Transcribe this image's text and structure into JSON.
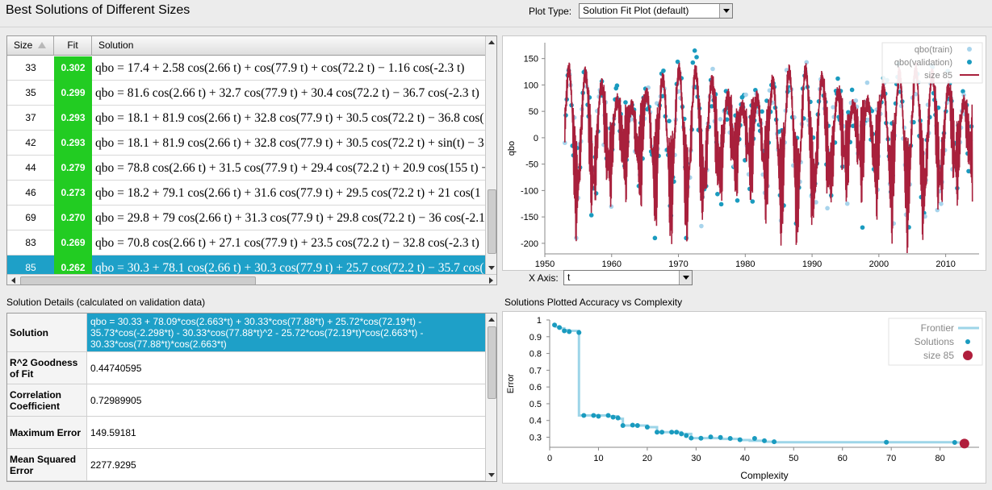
{
  "app": {
    "title": "Best Solutions of Different Sizes",
    "plot_type_label": "Plot Type:",
    "plot_type_value": "Solution Fit Plot (default)"
  },
  "solutions_table": {
    "columns": [
      "Size",
      "Fit",
      "Solution"
    ],
    "rows": [
      {
        "size": "33",
        "fit": "0.302",
        "solution": "qbo = 17.4 + 2.58 cos(2.66 t) + cos(77.9 t) + cos(72.2 t) − 1.16 cos(-2.3 t)"
      },
      {
        "size": "35",
        "fit": "0.299",
        "solution": "qbo = 81.6 cos(2.66 t) + 32.7 cos(77.9 t) + 30.4 cos(72.2 t) − 36.7 cos(-2.3 t)"
      },
      {
        "size": "37",
        "fit": "0.293",
        "solution": "qbo = 18.1 + 81.9 cos(2.66 t) + 32.8 cos(77.9 t) + 30.5 cos(72.2 t) − 36.8 cos("
      },
      {
        "size": "42",
        "fit": "0.293",
        "solution": "qbo = 18.1 + 81.9 cos(2.66 t) + 32.8 cos(77.9 t) + 30.5 cos(72.2 t) + sin(t) − 3"
      },
      {
        "size": "44",
        "fit": "0.279",
        "solution": "qbo = 78.8 cos(2.66 t) + 31.5 cos(77.9 t) + 29.4 cos(72.2 t) + 20.9 cos(155 t) −"
      },
      {
        "size": "46",
        "fit": "0.273",
        "solution": "qbo = 18.2 + 79.1 cos(2.66 t) + 31.6 cos(77.9 t) + 29.5 cos(72.2 t) + 21 cos(1"
      },
      {
        "size": "69",
        "fit": "0.270",
        "solution": "qbo = 29.8 + 79 cos(2.66 t) + 31.3 cos(77.9 t) + 29.8 cos(72.2 t) − 36 cos(-2.1"
      },
      {
        "size": "83",
        "fit": "0.269",
        "solution": "qbo = 70.8 cos(2.66 t) + 27.1 cos(77.9 t) + 23.5 cos(72.2 t) − 32.8 cos(-2.3 t)"
      },
      {
        "size": "85",
        "fit": "0.262",
        "solution": "qbo = 30.3 + 78.1 cos(2.66 t) + 30.3 cos(77.9 t) + 25.7 cos(72.2 t) − 35.7 cos("
      }
    ]
  },
  "details": {
    "title": "Solution Details (calculated on validation data)",
    "rows": [
      {
        "label": "Solution",
        "value": "qbo = 30.33 + 78.09*cos(2.663*t) + 30.33*cos(77.88*t) + 25.72*cos(72.19*t) - 35.73*cos(-2.298*t) - 30.33*cos(77.88*t)^2 - 25.72*cos(72.19*t)*cos(2.663*t) - 30.33*cos(77.88*t)*cos(2.663*t)"
      },
      {
        "label": "R^2 Goodness of Fit",
        "value": "0.44740595"
      },
      {
        "label": "Correlation Coefficient",
        "value": "0.72989905"
      },
      {
        "label": "Maximum Error",
        "value": "149.59181"
      },
      {
        "label": "Mean Squared Error",
        "value": "2277.9295"
      }
    ]
  },
  "x_axis_label": "X Axis:",
  "x_axis_value": "t",
  "complexity_title": "Solutions Plotted Accuracy vs Complexity",
  "chart_data": [
    {
      "type": "scatter",
      "xlabel": "",
      "ylabel": "qbo",
      "xlim": [
        1950,
        2015
      ],
      "ylim": [
        -220,
        180
      ],
      "xticks": [
        "1950",
        "1960",
        "1970",
        "1980",
        "1990",
        "2000",
        "2010"
      ],
      "yticks": [
        "150",
        "100",
        "50",
        "0",
        "-50",
        "-100",
        "-150",
        "-200"
      ],
      "legend": [
        "qbo(train)",
        "qbo(validation)",
        "size 85"
      ],
      "legend_position": "top-right",
      "colors": {
        "train": "#a8d4ec",
        "validation": "#1a9bbf",
        "fit": "#a8203c"
      },
      "series": [
        {
          "name": "size 85",
          "kind": "line",
          "model": {
            "c0": 30.33,
            "a": 78.09,
            "w": 2.663,
            "b": 30.33,
            "w2": 77.88,
            "c": 25.72,
            "w3": 72.19,
            "d": -35.73,
            "w4": -2.298
          }
        }
      ]
    },
    {
      "type": "line",
      "xlabel": "Complexity",
      "ylabel": "Error",
      "xlim": [
        0,
        88
      ],
      "ylim": [
        0.24,
        1.0
      ],
      "xticks": [
        "0",
        "10",
        "20",
        "30",
        "40",
        "50",
        "60",
        "70",
        "80"
      ],
      "yticks": [
        "1",
        "0.9",
        "0.8",
        "0.7",
        "0.6",
        "0.5",
        "0.4",
        "0.3"
      ],
      "legend": [
        "Frontier",
        "Solutions",
        "size 85"
      ],
      "legend_position": "top-right",
      "colors": {
        "frontier": "#9dd5e8",
        "solutions": "#1a9bbf",
        "selected": "#b01e3c"
      },
      "frontier": [
        [
          1,
          0.96
        ],
        [
          2,
          0.95
        ],
        [
          3,
          0.94
        ],
        [
          4,
          0.935
        ],
        [
          6,
          0.93
        ],
        [
          6,
          0.43
        ],
        [
          10,
          0.43
        ],
        [
          12,
          0.425
        ],
        [
          14,
          0.41
        ],
        [
          15,
          0.37
        ],
        [
          20,
          0.36
        ],
        [
          22,
          0.33
        ],
        [
          27,
          0.32
        ],
        [
          29,
          0.295
        ],
        [
          35,
          0.29
        ],
        [
          39,
          0.283
        ],
        [
          41,
          0.279
        ],
        [
          44,
          0.273
        ],
        [
          46,
          0.27
        ],
        [
          69,
          0.27
        ],
        [
          83,
          0.269
        ],
        [
          85,
          0.262
        ]
      ],
      "solutions": [
        [
          1,
          0.97
        ],
        [
          2,
          0.955
        ],
        [
          3,
          0.935
        ],
        [
          4,
          0.93
        ],
        [
          6,
          0.925
        ],
        [
          7,
          0.43
        ],
        [
          9,
          0.43
        ],
        [
          10,
          0.425
        ],
        [
          12,
          0.43
        ],
        [
          13,
          0.42
        ],
        [
          14,
          0.415
        ],
        [
          15,
          0.37
        ],
        [
          17,
          0.372
        ],
        [
          18,
          0.37
        ],
        [
          20,
          0.36
        ],
        [
          22,
          0.33
        ],
        [
          23,
          0.33
        ],
        [
          25,
          0.33
        ],
        [
          26,
          0.33
        ],
        [
          27,
          0.32
        ],
        [
          28,
          0.31
        ],
        [
          29,
          0.295
        ],
        [
          31,
          0.294
        ],
        [
          33,
          0.302
        ],
        [
          35,
          0.299
        ],
        [
          37,
          0.293
        ],
        [
          39,
          0.285
        ],
        [
          42,
          0.293
        ],
        [
          44,
          0.279
        ],
        [
          46,
          0.273
        ],
        [
          69,
          0.27
        ],
        [
          83,
          0.269
        ]
      ],
      "selected": [
        85,
        0.262
      ]
    }
  ]
}
